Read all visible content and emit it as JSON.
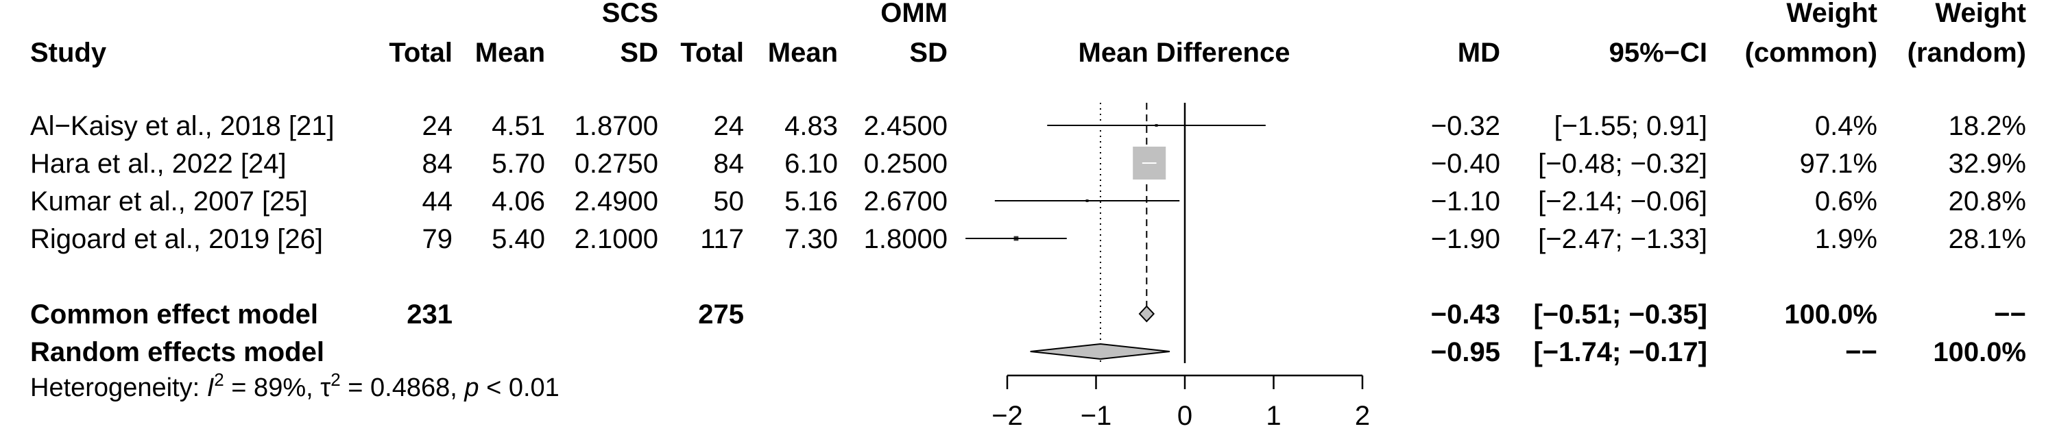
{
  "headers": {
    "study": "Study",
    "group1": "SCS",
    "group2": "OMM",
    "total": "Total",
    "mean": "Mean",
    "sd": "SD",
    "plot_title": "Mean Difference",
    "md": "MD",
    "ci": "95%−CI",
    "weight": "Weight",
    "weight_common": "(common)",
    "weight_random": "(random)"
  },
  "studies": [
    {
      "study": "Al−Kaisy et al., 2018 [21]",
      "t1": "24",
      "m1": "4.51",
      "sd1": "1.8700",
      "t2": "24",
      "m2": "4.83",
      "sd2": "2.4500",
      "md": "−0.32",
      "ci": "[−1.55;  0.91]",
      "w_common": "0.4%",
      "w_random": "18.2%"
    },
    {
      "study": "Hara et al., 2022 [24]",
      "t1": "84",
      "m1": "5.70",
      "sd1": "0.2750",
      "t2": "84",
      "m2": "6.10",
      "sd2": "0.2500",
      "md": "−0.40",
      "ci": "[−0.48; −0.32]",
      "w_common": "97.1%",
      "w_random": "32.9%"
    },
    {
      "study": "Kumar et al., 2007 [25]",
      "t1": "44",
      "m1": "4.06",
      "sd1": "2.4900",
      "t2": "50",
      "m2": "5.16",
      "sd2": "2.6700",
      "md": "−1.10",
      "ci": "[−2.14; −0.06]",
      "w_common": "0.6%",
      "w_random": "20.8%"
    },
    {
      "study": "Rigoard et al., 2019 [26]",
      "t1": "79",
      "m1": "5.40",
      "sd1": "2.1000",
      "t2": "117",
      "m2": "7.30",
      "sd2": "1.8000",
      "md": "−1.90",
      "ci": "[−2.47; −1.33]",
      "w_common": "1.9%",
      "w_random": "28.1%"
    }
  ],
  "pooled": [
    {
      "label": "Common effect model",
      "t1": "231",
      "t2": "275",
      "md": "−0.43",
      "ci": "[−0.51; −0.35]",
      "w_common": "100.0%",
      "w_random": "−−"
    },
    {
      "label": "Random effects model",
      "md": "−0.95",
      "ci": "[−1.74; −0.17]",
      "w_common": "−−",
      "w_random": "100.0%"
    }
  ],
  "heterogeneity": {
    "prefix": "Heterogeneity: ",
    "i2_sym": "I",
    "i2_sup": "2",
    "i2_val": " = 89%, ",
    "tau_sym": "τ",
    "tau_sup": "2",
    "tau_val": " = 0.4868, ",
    "p_sym": "p",
    "p_val": " < 0.01"
  },
  "chart_data": {
    "type": "forest",
    "x_axis_title": "Mean Difference",
    "xlim": [
      -2,
      2
    ],
    "ticks": [
      -2,
      -1,
      0,
      1,
      2
    ],
    "tick_labels": [
      "−2",
      "−1",
      "0",
      "1",
      "2"
    ],
    "studies": [
      {
        "name": "Al−Kaisy et al., 2018 [21]",
        "est": -0.32,
        "lo": -1.55,
        "hi": 0.91,
        "weight_common": 0.4
      },
      {
        "name": "Hara et al., 2022 [24]",
        "est": -0.4,
        "lo": -0.48,
        "hi": -0.32,
        "weight_common": 97.1
      },
      {
        "name": "Kumar et al., 2007 [25]",
        "est": -1.1,
        "lo": -2.14,
        "hi": -0.06,
        "weight_common": 0.6
      },
      {
        "name": "Rigoard et al., 2019 [26]",
        "est": -1.9,
        "lo": -2.47,
        "hi": -1.33,
        "weight_common": 1.9
      }
    ],
    "common": {
      "est": -0.43,
      "lo": -0.51,
      "hi": -0.35
    },
    "random": {
      "est": -0.95,
      "lo": -1.74,
      "hi": -0.17
    },
    "colors": {
      "square": "#c0c0c0",
      "diamond": "#c0c0c0",
      "line": "#000000"
    }
  }
}
